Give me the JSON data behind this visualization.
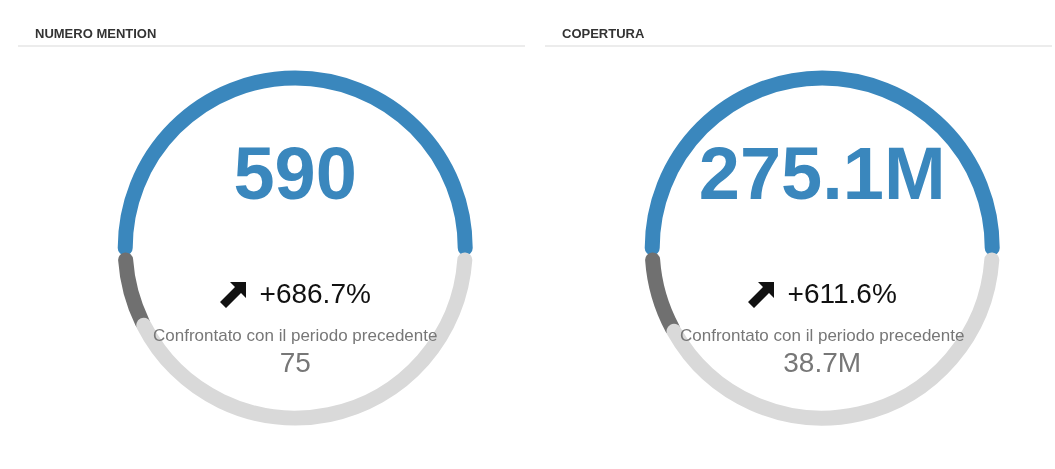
{
  "chart_data": [
    {
      "type": "other",
      "title": "NUMERO MENTION",
      "values": [
        590,
        75
      ],
      "value_labels": [
        "590",
        "75"
      ],
      "colors": [
        "#3a87bd",
        "#707070"
      ],
      "annotations": [
        "+686.7%",
        "Confrontato con il periodo precedente"
      ]
    },
    {
      "type": "other",
      "title": "COPERTURA",
      "values": [
        275.1,
        38.7
      ],
      "value_labels": [
        "275.1M",
        "38.7M"
      ],
      "colors": [
        "#3a87bd",
        "#707070"
      ],
      "annotations": [
        "+611.6%",
        "Confrontato con il periodo precedente"
      ]
    }
  ]
}
